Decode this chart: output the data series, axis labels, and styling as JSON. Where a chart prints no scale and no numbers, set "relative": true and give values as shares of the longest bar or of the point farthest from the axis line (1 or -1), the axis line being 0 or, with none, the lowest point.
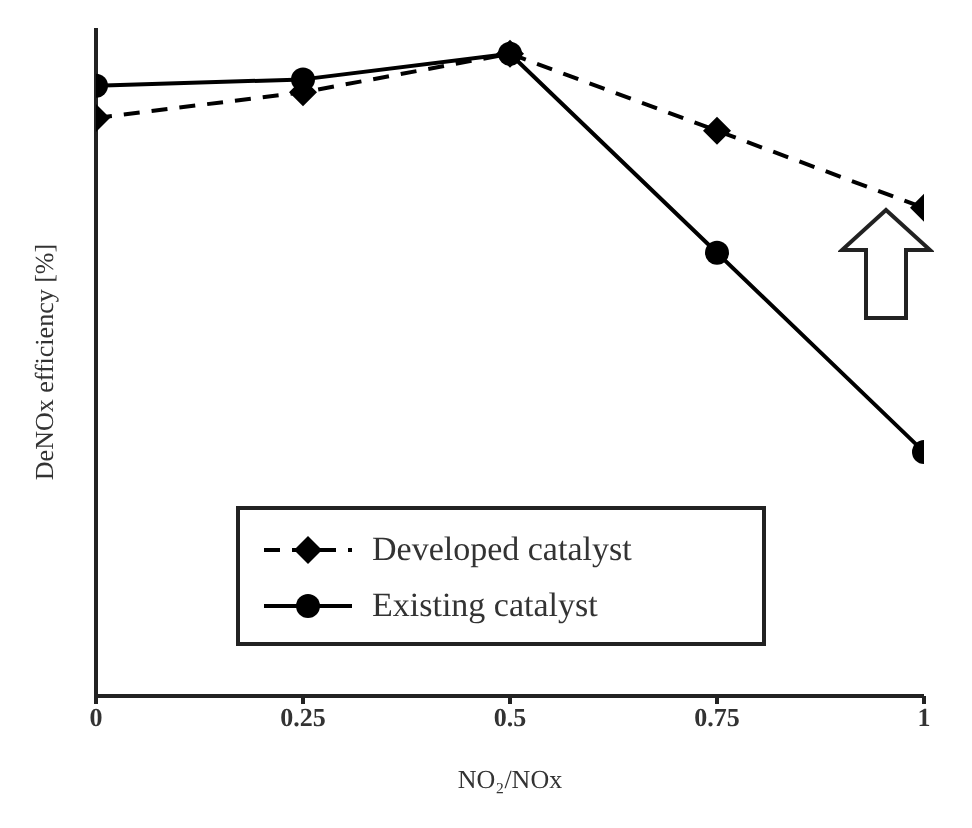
{
  "chart_data": {
    "type": "line",
    "relative": true,
    "xlabel": "NO₂/NOx",
    "ylabel": "DeNOx efficiency [%]",
    "x": [
      0,
      0.25,
      0.5,
      0.75,
      1
    ],
    "xlim": [
      0,
      1
    ],
    "xticks": [
      0,
      0.25,
      0.5,
      0.75,
      1
    ],
    "tick_labels": "x",
    "grid": false,
    "legend": "bottom left",
    "series": [
      {
        "name": "Developed catalyst",
        "color": "#000000",
        "values": [
          0.9,
          0.94,
          1,
          0.88,
          0.76
        ],
        "marker": "diamond",
        "line_style": "dashed"
      },
      {
        "name": "Existing catalyst",
        "color": "#000000",
        "values": [
          0.95,
          0.96,
          1,
          0.69,
          0.38
        ],
        "marker": "circle",
        "line_style": "solid"
      }
    ]
  }
}
